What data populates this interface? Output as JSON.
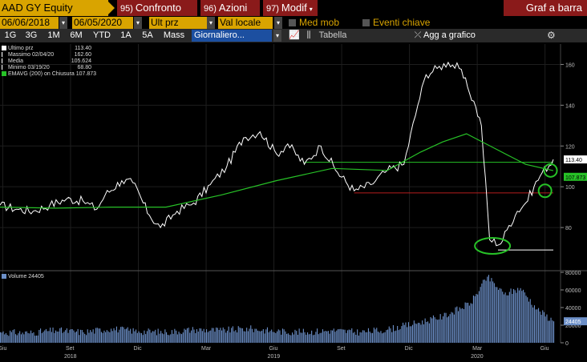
{
  "header": {
    "ticker": "AAD GY Equity",
    "buttons": [
      {
        "num": "95)",
        "label": "Confronto"
      },
      {
        "num": "96)",
        "label": "Azioni"
      },
      {
        "num": "97)",
        "label": "Modif"
      }
    ],
    "graf": "Graf a barra"
  },
  "controls": {
    "date_from": "06/06/2018",
    "date_to": "06/05/2020",
    "field": "Ult prz",
    "currency": "Val locale",
    "med_mob": "Med mob",
    "eventi": "Eventi chiave"
  },
  "toolbar": {
    "periods": [
      "1G",
      "3G",
      "1M",
      "6M",
      "YTD",
      "1A",
      "5A",
      "Mass"
    ],
    "frequency": "Giornaliero...",
    "tabella": "Tabella",
    "agg_grafico": "Agg a grafico"
  },
  "legend": [
    {
      "name": "Ultimo prz",
      "value": "113.40"
    },
    {
      "name": "Massimo 02/04/20",
      "value": "162.60"
    },
    {
      "name": "Media",
      "value": "105.624"
    },
    {
      "name": "Minimo 03/19/20",
      "value": "68.80"
    },
    {
      "name": "EMAVG (200)  on Chiusura",
      "value": "107.873"
    }
  ],
  "volume_legend": "Volume 24405",
  "colors": {
    "price": "#ffffff",
    "ema": "#27c227",
    "volume": "#6c8fc7",
    "accent": "#d9a400",
    "fn": "#8a1a1a"
  },
  "chart_data": {
    "type": "line",
    "x_labels": [
      {
        "label": "Giu",
        "year": ""
      },
      {
        "label": "Set",
        "year": "2018"
      },
      {
        "label": "Dic",
        "year": ""
      },
      {
        "label": "Mar",
        "year": ""
      },
      {
        "label": "Giu",
        "year": "2019"
      },
      {
        "label": "Set",
        "year": ""
      },
      {
        "label": "Dic",
        "year": ""
      },
      {
        "label": "Mar",
        "year": "2020"
      },
      {
        "label": "Giu",
        "year": ""
      }
    ],
    "price_axis": {
      "min": 60,
      "max": 170,
      "ticks": [
        "160",
        "140",
        "120",
        "100",
        "80"
      ]
    },
    "price_tags": {
      "last": "113.40",
      "ema": "107.873"
    },
    "volume_axis": {
      "min": 0,
      "max": 80000,
      "ticks": [
        "80000",
        "60000",
        "40000",
        "20000",
        "0"
      ],
      "last_tag": "24405"
    },
    "price": [
      [
        0,
        91
      ],
      [
        0.03,
        89
      ],
      [
        0.06,
        88
      ],
      [
        0.09,
        91
      ],
      [
        0.12,
        94
      ],
      [
        0.15,
        93
      ],
      [
        0.175,
        89
      ],
      [
        0.19,
        96
      ],
      [
        0.22,
        103
      ],
      [
        0.24,
        102
      ],
      [
        0.27,
        86
      ],
      [
        0.29,
        80
      ],
      [
        0.32,
        88
      ],
      [
        0.35,
        92
      ],
      [
        0.38,
        101
      ],
      [
        0.41,
        110
      ],
      [
        0.44,
        124
      ],
      [
        0.47,
        127
      ],
      [
        0.5,
        116
      ],
      [
        0.52,
        121
      ],
      [
        0.55,
        111
      ],
      [
        0.58,
        120
      ],
      [
        0.61,
        107
      ],
      [
        0.64,
        98
      ],
      [
        0.67,
        101
      ],
      [
        0.7,
        108
      ],
      [
        0.73,
        111
      ],
      [
        0.755,
        140
      ],
      [
        0.77,
        155
      ],
      [
        0.79,
        158
      ],
      [
        0.81,
        161
      ],
      [
        0.83,
        158
      ],
      [
        0.845,
        149
      ],
      [
        0.86,
        139
      ],
      [
        0.87,
        130
      ],
      [
        0.885,
        74
      ],
      [
        0.905,
        72
      ],
      [
        0.92,
        81
      ],
      [
        0.935,
        88
      ],
      [
        0.95,
        92
      ],
      [
        0.965,
        100
      ],
      [
        0.98,
        107
      ],
      [
        1.0,
        113.4
      ]
    ],
    "ema": [
      [
        0,
        90
      ],
      [
        0.1,
        89.5
      ],
      [
        0.2,
        90
      ],
      [
        0.3,
        90
      ],
      [
        0.4,
        96
      ],
      [
        0.5,
        103
      ],
      [
        0.6,
        109
      ],
      [
        0.7,
        108
      ],
      [
        0.76,
        117
      ],
      [
        0.8,
        122
      ],
      [
        0.843,
        126
      ],
      [
        0.9,
        118
      ],
      [
        0.95,
        111
      ],
      [
        1.0,
        107.9
      ]
    ],
    "lines": [
      {
        "name": "hline-high",
        "value": 112,
        "x0": 0.55,
        "x1": 1.0,
        "color": "#27c227"
      },
      {
        "name": "hline-mid",
        "value": 97,
        "x0": 0.64,
        "x1": 1.0,
        "color": "#b71c1c"
      },
      {
        "name": "hline-low",
        "value": 69,
        "x0": 0.9,
        "x1": 1.0,
        "color": "#ffffff"
      }
    ],
    "circles": [
      {
        "name": "circle-low",
        "x": 0.89,
        "value": 71,
        "color": "#27c227"
      },
      {
        "name": "circle-mid",
        "x": 0.985,
        "value": 98,
        "color": "#27c227"
      },
      {
        "name": "circle-high",
        "x": 0.995,
        "value": 108,
        "color": "#27c227"
      }
    ],
    "volume": [
      [
        0.0,
        12000
      ],
      [
        0.05,
        11000
      ],
      [
        0.1,
        14000
      ],
      [
        0.15,
        12000
      ],
      [
        0.2,
        16000
      ],
      [
        0.25,
        13000
      ],
      [
        0.3,
        12000
      ],
      [
        0.35,
        15000
      ],
      [
        0.4,
        14000
      ],
      [
        0.45,
        16000
      ],
      [
        0.5,
        13000
      ],
      [
        0.55,
        12000
      ],
      [
        0.6,
        14000
      ],
      [
        0.65,
        12000
      ],
      [
        0.7,
        15000
      ],
      [
        0.75,
        22000
      ],
      [
        0.8,
        30000
      ],
      [
        0.85,
        45000
      ],
      [
        0.88,
        75000
      ],
      [
        0.91,
        55000
      ],
      [
        0.94,
        62000
      ],
      [
        0.97,
        38000
      ],
      [
        1.0,
        24405
      ]
    ]
  }
}
